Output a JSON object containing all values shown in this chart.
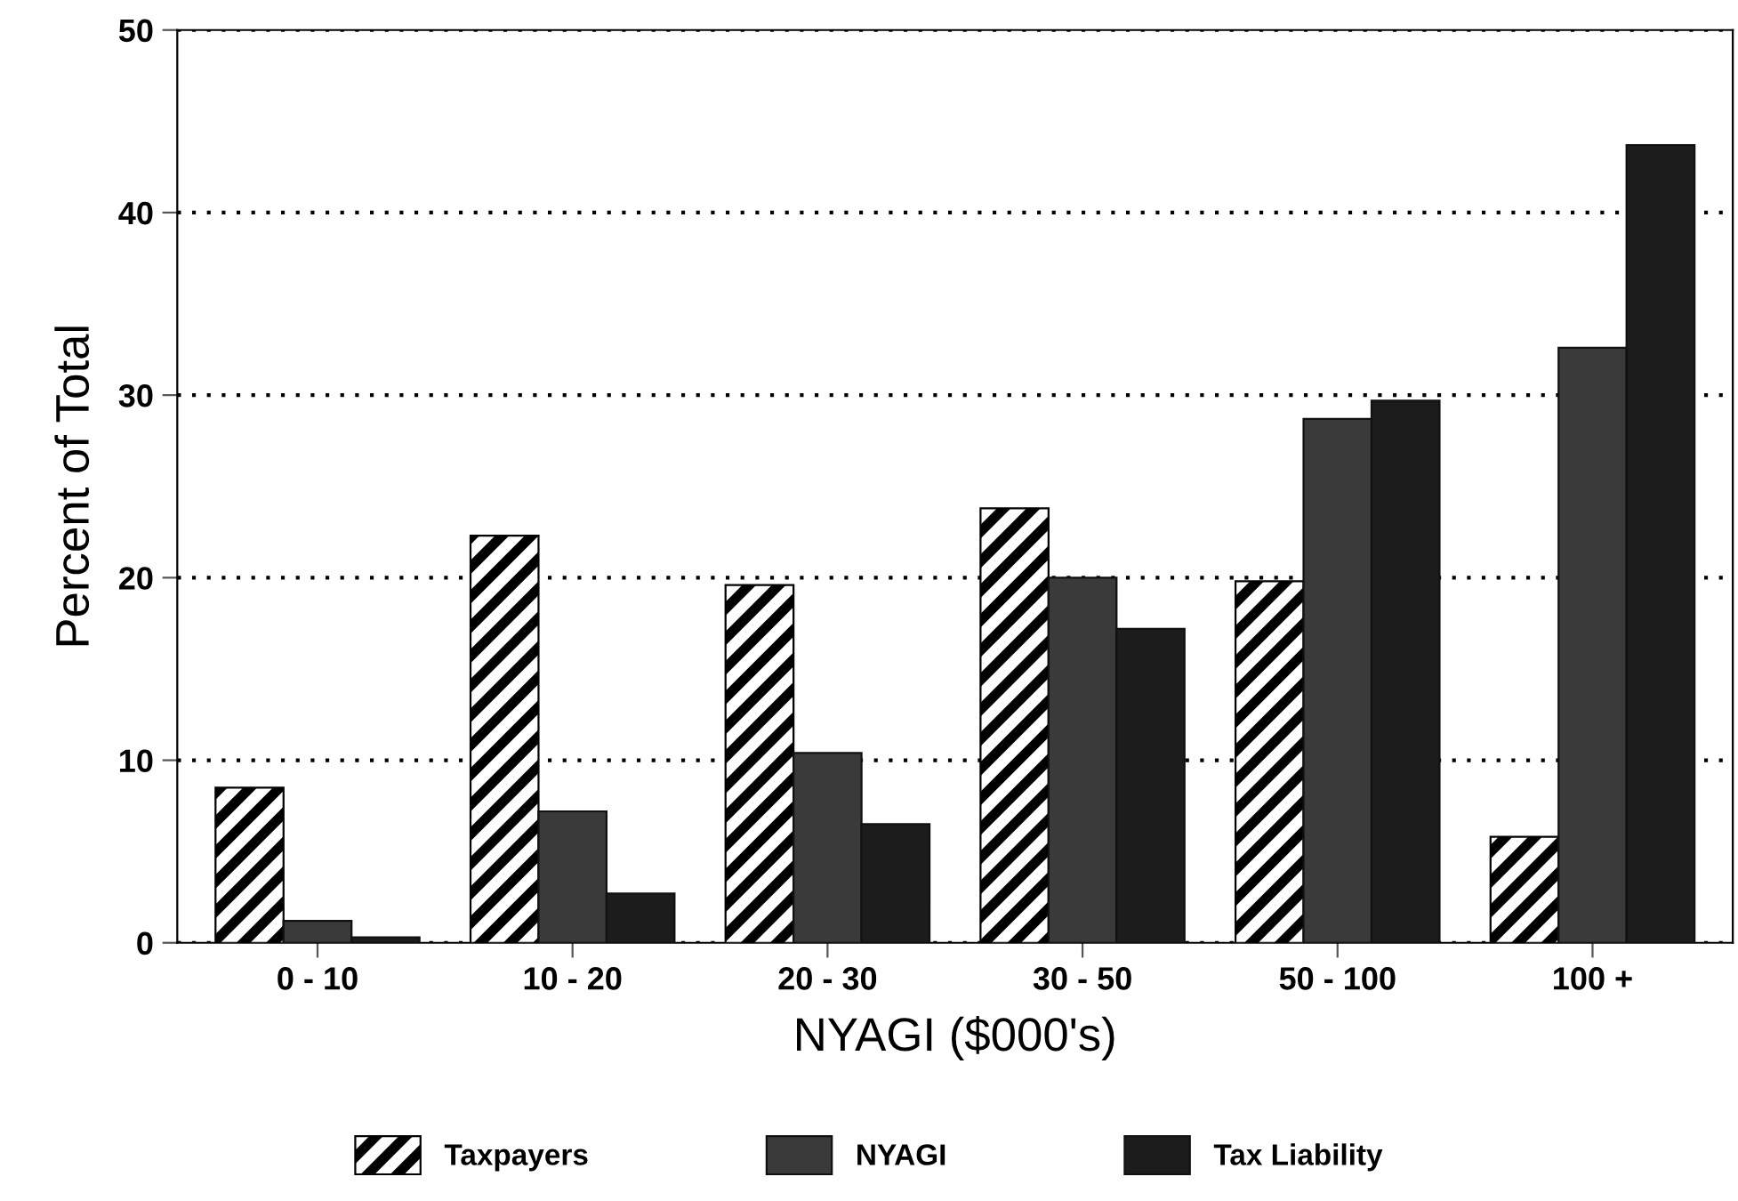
{
  "chart_data": {
    "type": "bar",
    "xlabel": "NYAGI ($000's)",
    "ylabel": "Percent of Total",
    "categories": [
      "0 - 10",
      "10 - 20",
      "20 - 30",
      "30 - 50",
      "50 - 100",
      "100 +"
    ],
    "series": [
      {
        "name": "Taxpayers",
        "color": "#000000",
        "values": [
          8.5,
          22.3,
          19.6,
          23.8,
          19.8,
          5.8
        ]
      },
      {
        "name": "NYAGI",
        "color": "#3a3a3a",
        "values": [
          1.2,
          7.2,
          10.4,
          20.0,
          28.7,
          32.6
        ]
      },
      {
        "name": "Tax Liability",
        "color": "#1c1c1c",
        "values": [
          0.3,
          2.7,
          6.5,
          17.2,
          29.7,
          43.7
        ]
      }
    ],
    "ylim": [
      0,
      50
    ],
    "yticks": [
      0,
      10,
      20,
      30,
      40,
      50
    ],
    "grid": "y",
    "legend": "bottom"
  }
}
